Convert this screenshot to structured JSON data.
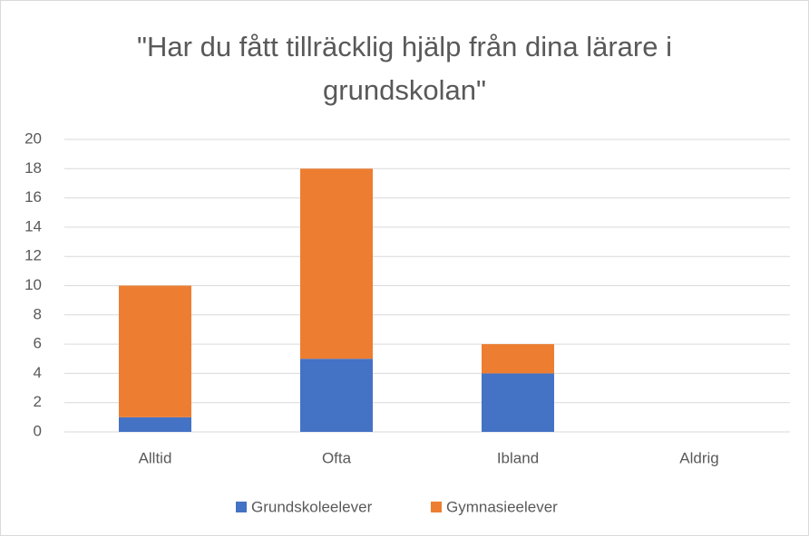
{
  "chart_data": {
    "type": "bar",
    "stacked": true,
    "title": "\"Har du fått tillräcklig hjälp från dina lärare i grundskolan\"",
    "categories": [
      "Alltid",
      "Ofta",
      "Ibland",
      "Aldrig"
    ],
    "series": [
      {
        "name": "Grundskoleelever",
        "color": "#4472c4",
        "values": [
          1,
          5,
          4,
          0
        ]
      },
      {
        "name": "Gymnasieelever",
        "color": "#ed7d31",
        "values": [
          9,
          13,
          2,
          0
        ]
      }
    ],
    "ylim": [
      0,
      20
    ],
    "yticks": [
      0,
      2,
      4,
      6,
      8,
      10,
      12,
      14,
      16,
      18,
      20
    ],
    "grid": true,
    "legend": "bottom"
  }
}
